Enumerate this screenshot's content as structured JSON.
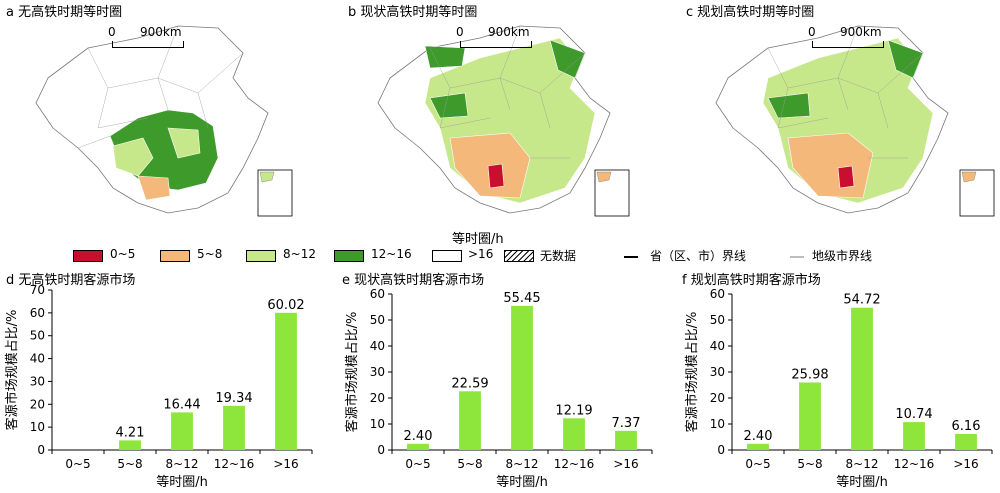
{
  "maps": [
    {
      "id": "a",
      "title": "a  无高铁时期等时圈",
      "scale_zero": "0",
      "scale_km": "900km"
    },
    {
      "id": "b",
      "title": "b  现状高铁时期等时圈",
      "scale_zero": "0",
      "scale_km": "900km"
    },
    {
      "id": "c",
      "title": "c  规划高铁时期等时圈",
      "scale_zero": "0",
      "scale_km": "900km"
    }
  ],
  "legend": {
    "title": "等时圈/h",
    "items": [
      {
        "label": "0~5",
        "color": "#c8102e"
      },
      {
        "label": "5~8",
        "color": "#f4b87a"
      },
      {
        "label": "8~12",
        "color": "#c6e88a"
      },
      {
        "label": "12~16",
        "color": "#3f9a2c"
      },
      {
        "label": ">16",
        "color": "#ffffff"
      },
      {
        "label": "无数据",
        "color": "hatch"
      }
    ],
    "line_items": [
      {
        "label": "省（区、市）界线",
        "color": "#000000"
      },
      {
        "label": "地级市界线",
        "color": "#bdbdbd"
      }
    ]
  },
  "chart_data": [
    {
      "type": "bar",
      "title": "d  无高铁时期客源市场",
      "categories": [
        "0~5",
        "5~8",
        "8~12",
        "12~16",
        ">16"
      ],
      "values": [
        null,
        4.21,
        16.44,
        19.34,
        60.02
      ],
      "value_labels": [
        "",
        "4.21",
        "16.44",
        "19.34",
        "60.02"
      ],
      "xlabel": "等时圈/h",
      "ylabel": "客源市场规模占比/%",
      "ylim": [
        0,
        70
      ],
      "yticks": [
        0,
        10,
        20,
        30,
        40,
        50,
        60,
        70
      ],
      "bar_color": "#8ee63c"
    },
    {
      "type": "bar",
      "title": "e  现状高铁时期客源市场",
      "categories": [
        "0~5",
        "5~8",
        "8~12",
        "12~16",
        ">16"
      ],
      "values": [
        2.4,
        22.59,
        55.45,
        12.19,
        7.37
      ],
      "value_labels": [
        "2.40",
        "22.59",
        "55.45",
        "12.19",
        "7.37"
      ],
      "xlabel": "等时圈/h",
      "ylabel": "客源市场规模占比/%",
      "ylim": [
        0,
        60
      ],
      "yticks": [
        0,
        10,
        20,
        30,
        40,
        50,
        60
      ],
      "bar_color": "#8ee63c"
    },
    {
      "type": "bar",
      "title": "f  规划高铁时期客源市场",
      "categories": [
        "0~5",
        "5~8",
        "8~12",
        "12~16",
        ">16"
      ],
      "values": [
        2.4,
        25.98,
        54.72,
        10.74,
        6.16
      ],
      "value_labels": [
        "2.40",
        "25.98",
        "54.72",
        "10.74",
        "6.16"
      ],
      "xlabel": "等时圈/h",
      "ylabel": "客源市场规模占比/%",
      "ylim": [
        0,
        60
      ],
      "yticks": [
        0,
        10,
        20,
        30,
        40,
        50,
        60
      ],
      "bar_color": "#8ee63c"
    }
  ]
}
